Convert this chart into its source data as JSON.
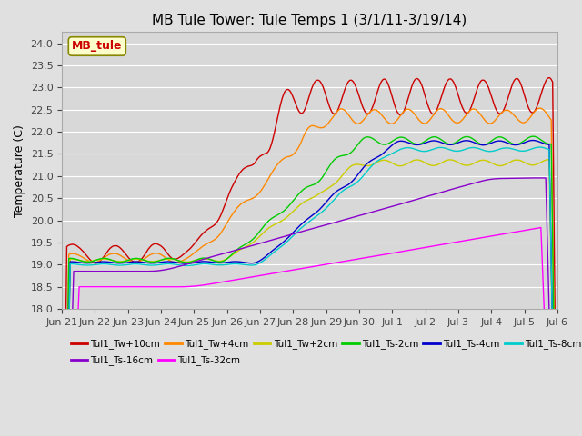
{
  "title": "MB Tule Tower: Tule Temps 1 (3/1/11-3/19/14)",
  "ylabel": "Temperature (C)",
  "ylim": [
    18.0,
    24.25
  ],
  "yticks": [
    18.0,
    18.5,
    19.0,
    19.5,
    20.0,
    20.5,
    21.0,
    21.5,
    22.0,
    22.5,
    23.0,
    23.5,
    24.0
  ],
  "legend_title": "MB_tule",
  "series_names": [
    "Tul1_Tw+10cm",
    "Tul1_Tw+4cm",
    "Tul1_Tw+2cm",
    "Tul1_Ts-2cm",
    "Tul1_Ts-4cm",
    "Tul1_Ts-8cm",
    "Tul1_Ts-16cm",
    "Tul1_Ts-32cm"
  ],
  "series_colors": [
    "#cc0000",
    "#ff8800",
    "#cccc00",
    "#00cc00",
    "#0000cc",
    "#00cccc",
    "#8800cc",
    "#ff00ff"
  ],
  "xtick_labels": [
    "Jun 21",
    "Jun 22",
    "Jun 23",
    "Jun 24",
    "Jun 25",
    "Jun 26",
    "Jun 27",
    "Jun 28",
    "Jun 29",
    "Jun 30",
    "Jul 1",
    "Jul 2",
    "Jul 3",
    "Jul 4",
    "Jul 5",
    "Jul 6"
  ],
  "background_color": "#e0e0e0",
  "plot_bg_color": "#d8d8d8",
  "grid_color": "#ffffff",
  "title_fontsize": 11,
  "axis_fontsize": 9,
  "tick_fontsize": 8
}
